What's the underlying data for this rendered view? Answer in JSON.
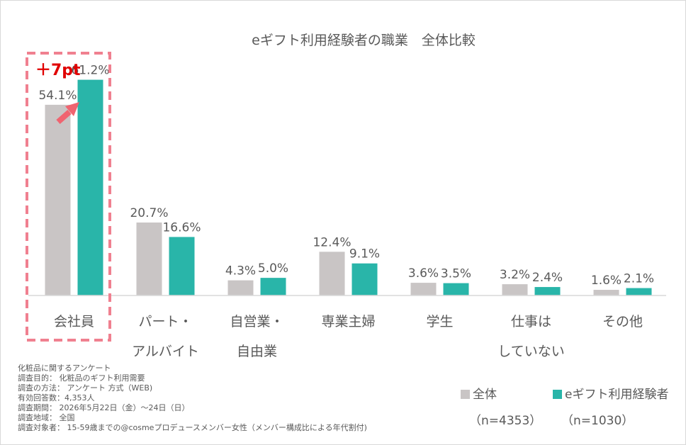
{
  "colors": {
    "series1": "#c9c5c5",
    "series2": "#29b5a9",
    "highlight": "#f08090",
    "callout_text": "#e00000",
    "callout_arrow": "#f06470",
    "text": "#595959",
    "axis": "#d9d9d9"
  },
  "chart_data": {
    "type": "bar",
    "title": "eギフト利用経験者の職業　全体比較",
    "categories": [
      [
        "会社員"
      ],
      [
        "パート・",
        "アルバイト"
      ],
      [
        "自営業・",
        "自由業"
      ],
      [
        "専業主婦"
      ],
      [
        "学生"
      ],
      [
        "仕事は",
        "していない"
      ],
      [
        "その他"
      ]
    ],
    "series": [
      {
        "name": "全体",
        "values": [
          54.1,
          20.7,
          4.3,
          12.4,
          3.6,
          3.2,
          1.6
        ],
        "labels": [
          "54.1%",
          "20.7%",
          "4.3%",
          "12.4%",
          "3.6%",
          "3.2%",
          "1.6%"
        ]
      },
      {
        "name": "eギフト利用経験者",
        "values": [
          61.2,
          16.6,
          5.0,
          9.1,
          3.5,
          2.4,
          2.1
        ],
        "labels": [
          "61.2%",
          "16.6%",
          "5.0%",
          "9.1%",
          "3.5%",
          "2.4%",
          "2.1%"
        ]
      }
    ],
    "ylim": [
      0,
      63
    ],
    "grid": false,
    "legend_position": "bottom-right",
    "annotation": {
      "text": "＋7pt",
      "category_index": 0
    }
  },
  "legend": {
    "items": [
      {
        "label": "全体",
        "n": "（n=4353）"
      },
      {
        "label": "eギフト利用経験者",
        "n": "（n=1030）"
      }
    ]
  },
  "notes": [
    "化粧品に関するアンケート",
    "調査目的： 化粧品のギフト利用需要",
    "調査の方法： アンケート 方式（WEB)",
    "有効回答数：4,353人",
    "調査期間： 2026年5月22日（金）～24日（日）",
    "調査地域： 全国",
    "調査対象者： 15-59歳までの@cosmeプロデュースメンバー女性（メンバー構成比による年代割付)"
  ]
}
